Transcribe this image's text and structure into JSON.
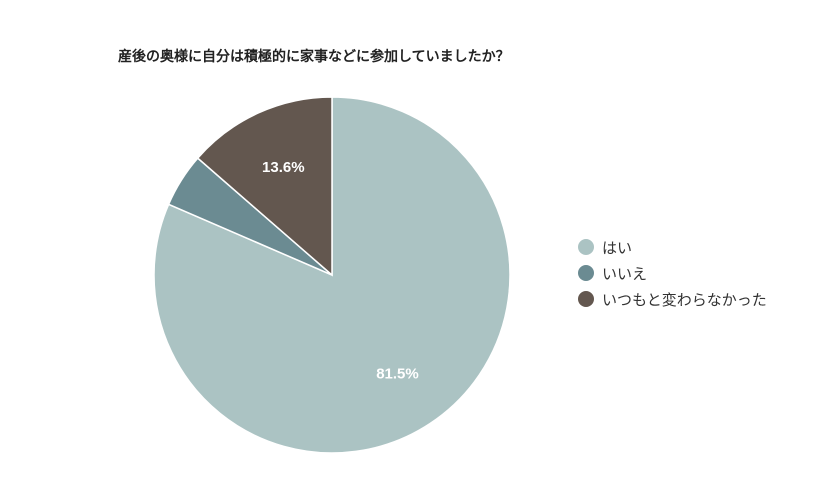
{
  "chart_data": {
    "type": "pie",
    "title": "産後の奥様に自分は積極的に家事などに参加していましたか？",
    "slices": [
      {
        "label": "はい",
        "value": 81.5,
        "display": "81.5%",
        "color": "#abc3c3"
      },
      {
        "label": "いいえ",
        "value": 4.9,
        "display": "",
        "color": "#6b8b92"
      },
      {
        "label": "いつもと変わらなかった",
        "value": 13.6,
        "display": "13.6%",
        "color": "#63574f"
      }
    ],
    "legend_position": "right"
  }
}
